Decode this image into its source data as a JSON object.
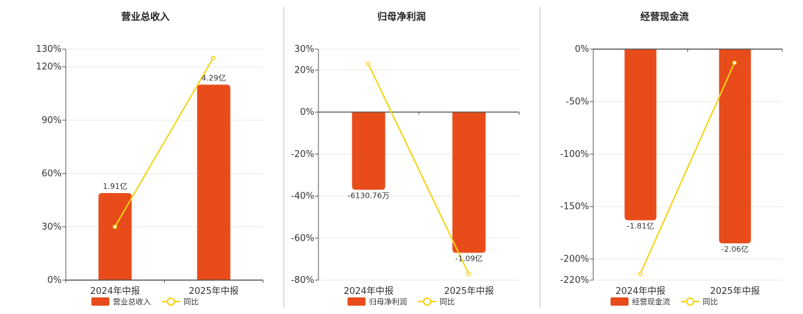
{
  "chart_data": [
    {
      "type": "bar",
      "title": "营业总收入",
      "categories": [
        "2024年中报",
        "2025年中报"
      ],
      "series": [
        {
          "name": "营业总收入",
          "type": "bar",
          "values": [
            49,
            110
          ],
          "labels": [
            "1.91亿",
            "4.29亿"
          ]
        },
        {
          "name": "同比",
          "type": "line",
          "values": [
            30,
            125
          ]
        }
      ],
      "yticks": [
        "0%",
        "30%",
        "60%",
        "90%",
        "120%",
        "130%"
      ],
      "ylim": [
        0,
        130
      ],
      "grid": true,
      "legend": "bottom"
    },
    {
      "type": "bar",
      "title": "归母净利润",
      "categories": [
        "2024年中报",
        "2025年中报"
      ],
      "series": [
        {
          "name": "归母净利润",
          "type": "bar",
          "values": [
            -37,
            -67
          ],
          "labels": [
            "-6130.76万",
            "-1.09亿"
          ]
        },
        {
          "name": "同比",
          "type": "line",
          "values": [
            23,
            -77
          ]
        }
      ],
      "yticks": [
        "30%",
        "20%",
        "0%",
        "-20%",
        "-40%",
        "-60%",
        "-80%"
      ],
      "ylim": [
        -80,
        30
      ],
      "grid": true,
      "legend": "bottom"
    },
    {
      "type": "bar",
      "title": "经营现金流",
      "categories": [
        "2024年中报",
        "2025年中报"
      ],
      "series": [
        {
          "name": "经营现金流",
          "type": "bar",
          "values": [
            -163,
            -185
          ],
          "labels": [
            "-1.81亿",
            "-2.06亿"
          ]
        },
        {
          "name": "同比",
          "type": "line",
          "values": [
            -214,
            -13
          ]
        }
      ],
      "yticks": [
        "0%",
        "-50%",
        "-100%",
        "-150%",
        "-200%",
        "-220%"
      ],
      "ylim": [
        -220,
        0
      ],
      "grid": true,
      "legend": "bottom"
    }
  ],
  "colors": {
    "bar": "#e84c1a",
    "line": "#f5d312",
    "axis": "#555555",
    "grid": "#e8e8e8",
    "divider": "#bbbbbb"
  }
}
